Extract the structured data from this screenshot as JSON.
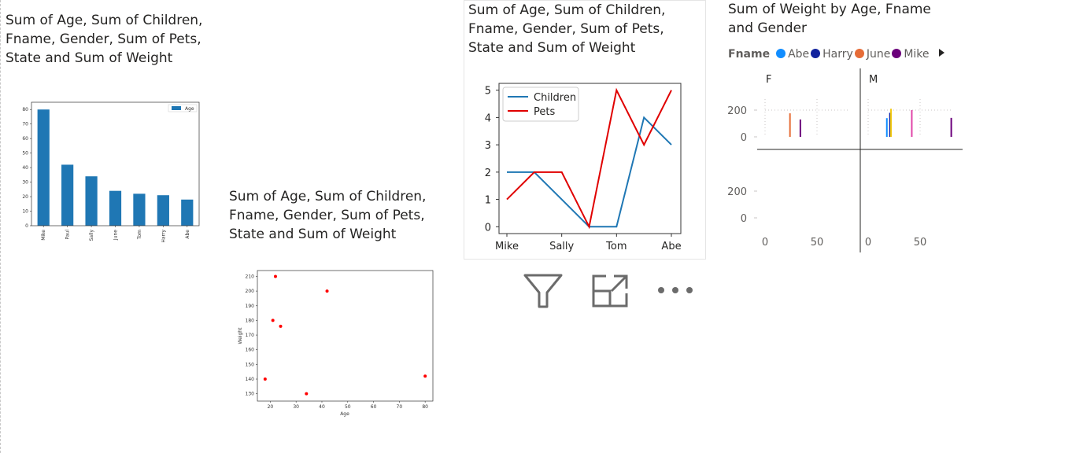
{
  "visuals": [
    {
      "title": "Sum of Age, Sum of Children,\nFname, Gender, Sum of Pets,\nState and Sum of Weight"
    },
    {
      "title": "Sum of Age, Sum of Children,\nFname, Gender, Sum of Pets,\nState and Sum of Weight"
    },
    {
      "title": "Sum of Age, Sum of Children,\nFname, Gender, Sum of Pets,\nState and Sum of Weight"
    },
    {
      "title": "Sum of Weight by Age, Fname\nand Gender"
    }
  ],
  "toolbar": {
    "icons": [
      "filter-icon",
      "focus-mode-icon",
      "more-options-icon"
    ]
  },
  "legend": {
    "label": "Fname",
    "items": [
      {
        "name": "Abe",
        "color": "#118DFF"
      },
      {
        "name": "Harry",
        "color": "#12239E"
      },
      {
        "name": "June",
        "color": "#E66C37"
      },
      {
        "name": "Mike",
        "color": "#6B007B"
      }
    ]
  },
  "chart_data": [
    {
      "type": "bar",
      "categories": [
        "Mike",
        "Paul",
        "Sally",
        "June",
        "Tom",
        "Harry",
        "Abe"
      ],
      "series": [
        {
          "name": "Age",
          "values": [
            80,
            42,
            34,
            24,
            22,
            21,
            18
          ]
        }
      ],
      "ylim": [
        0,
        85
      ],
      "yticks": [
        0,
        10,
        20,
        30,
        40,
        50,
        60,
        70,
        80
      ],
      "legend": "top-right",
      "color": "#1F77B4"
    },
    {
      "type": "scatter",
      "xlabel": "Age",
      "ylabel": "Weight",
      "points": [
        {
          "x": 18,
          "y": 140
        },
        {
          "x": 21,
          "y": 180
        },
        {
          "x": 22,
          "y": 210
        },
        {
          "x": 24,
          "y": 176
        },
        {
          "x": 34,
          "y": 130
        },
        {
          "x": 42,
          "y": 200
        },
        {
          "x": 80,
          "y": 142
        }
      ],
      "xlim": [
        15,
        83
      ],
      "ylim": [
        125,
        214
      ],
      "xticks": [
        20,
        30,
        40,
        50,
        60,
        70,
        80
      ],
      "yticks": [
        130,
        140,
        150,
        160,
        170,
        180,
        190,
        200,
        210
      ],
      "color": "#FF0000"
    },
    {
      "type": "line",
      "categories": [
        "Mike",
        "",
        "Sally",
        "",
        "Tom",
        "",
        "Abe"
      ],
      "xtick_labels": [
        "Mike",
        "Sally",
        "Tom",
        "Abe"
      ],
      "series": [
        {
          "name": "Children",
          "values": [
            2,
            2,
            1,
            0,
            0,
            4,
            3
          ],
          "color": "#1F77B4"
        },
        {
          "name": "Pets",
          "values": [
            1,
            2,
            2,
            0,
            5,
            3,
            5
          ],
          "color": "#E00000"
        }
      ],
      "ylim": [
        -0.25,
        5.25
      ],
      "yticks": [
        0,
        1,
        2,
        3,
        4,
        5
      ],
      "legend": "top-left"
    },
    {
      "type": "bar",
      "facets": [
        "F",
        "M"
      ],
      "yticks": [
        0,
        200
      ],
      "xticks": [
        0,
        50
      ],
      "bars": [
        {
          "facet": "F",
          "age": 24,
          "weight": 176,
          "color": "#E66C37"
        },
        {
          "facet": "F",
          "age": 34,
          "weight": 130,
          "color": "#6B007B"
        },
        {
          "facet": "M",
          "age": 18,
          "weight": 140,
          "color": "#118DFF"
        },
        {
          "facet": "M",
          "age": 21,
          "weight": 180,
          "color": "#12239E"
        },
        {
          "facet": "M",
          "age": 22,
          "weight": 210,
          "color": "#F2C80F"
        },
        {
          "facet": "M",
          "age": 42,
          "weight": 200,
          "color": "#E044A7"
        },
        {
          "facet": "M",
          "age": 80,
          "weight": 142,
          "color": "#6B007B"
        }
      ]
    }
  ]
}
